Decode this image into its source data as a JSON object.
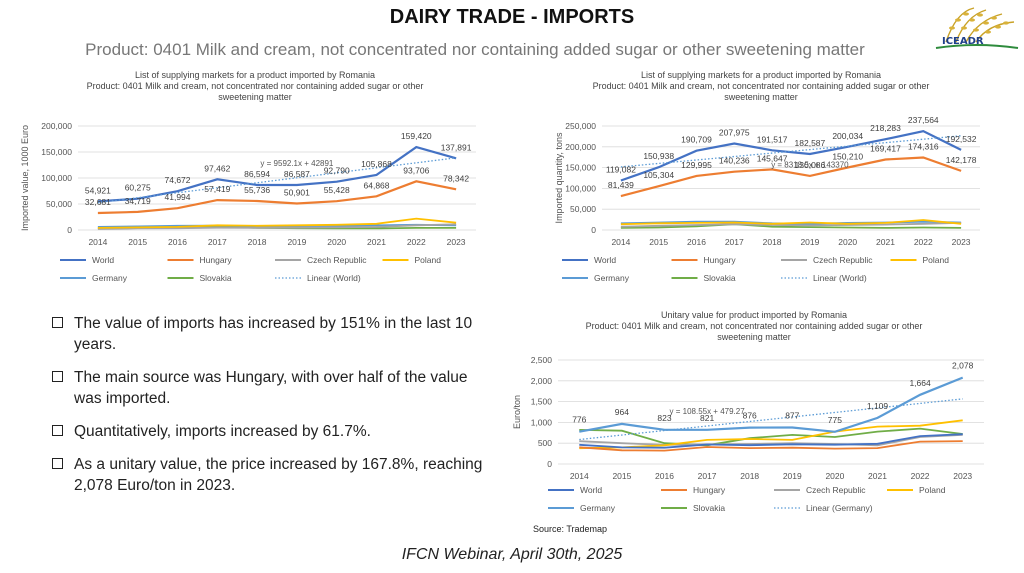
{
  "header": {
    "title": "DAIRY TRADE - IMPORTS",
    "subtitle": "Product: 0401 Milk and cream, not concentrated nor containing added sugar or other sweetening matter",
    "logo_text": "ICEADR"
  },
  "colors": {
    "World": "#4472c4",
    "Hungary": "#ed7d31",
    "Czech Republic": "#a5a5a5",
    "Poland": "#ffc000",
    "Germany": "#5b9bd5",
    "Slovakia": "#70ad47"
  },
  "chart_data": [
    {
      "type": "line",
      "title": "List of supplying markets for a product imported by Romania\nProduct: 0401 Milk and cream, not concentrated nor containing added sugar or other sweetening matter",
      "ylabel": "Imported value, 1000 Euro",
      "xlabel": "",
      "ylim": [
        0,
        200000
      ],
      "yticks": [
        0,
        50000,
        100000,
        150000,
        200000
      ],
      "ytick_labels": [
        "0",
        "50,000",
        "100,000",
        "150,000",
        "200,000"
      ],
      "x": [
        "2014",
        "2015",
        "2016",
        "2017",
        "2018",
        "2019",
        "2020",
        "2021",
        "2022",
        "2023"
      ],
      "series": [
        {
          "name": "World",
          "values": [
            54921,
            60275,
            74672,
            97462,
            86594,
            86587,
            92790,
            105868,
            159420,
            137891
          ],
          "labels": [
            "54,921",
            "60,275",
            "74,672",
            "97,462",
            "86,594",
            "86,587",
            "92,790",
            "105,868",
            "159,420",
            "137,891"
          ]
        },
        {
          "name": "Hungary",
          "values": [
            32681,
            34719,
            41994,
            57419,
            55736,
            50901,
            55428,
            64868,
            93706,
            78342
          ],
          "labels": [
            "32,681",
            "34,719",
            "41,994",
            "57,419",
            "55,736",
            "50,901",
            "55,428",
            "64,868",
            "93,706",
            "78,342"
          ]
        },
        {
          "name": "Czech Republic",
          "values": [
            2000,
            3000,
            3500,
            4500,
            4000,
            4500,
            5000,
            6000,
            9000,
            11000
          ]
        },
        {
          "name": "Poland",
          "values": [
            4000,
            5000,
            6000,
            9000,
            8000,
            9000,
            10000,
            12000,
            22000,
            14000
          ]
        },
        {
          "name": "Germany",
          "values": [
            6000,
            7000,
            8000,
            8500,
            7000,
            7500,
            8000,
            9000,
            10000,
            9000
          ]
        },
        {
          "name": "Slovakia",
          "values": [
            3000,
            4000,
            5000,
            7000,
            4000,
            3500,
            3000,
            3000,
            4000,
            4000
          ]
        }
      ],
      "trendline": {
        "name": "Linear (World)",
        "slope": 9592.1,
        "intercept": 42891,
        "equation": "y = 9592.1x + 42891"
      },
      "legend": [
        "World",
        "Hungary",
        "Czech Republic",
        "Poland",
        "Germany",
        "Slovakia",
        "Linear (World)"
      ],
      "legend_position": "bottom",
      "grid": true
    },
    {
      "type": "line",
      "title": "List of supplying markets for a product imported by Romania\nProduct: 0401 Milk and cream, not concentrated nor containing added sugar or other sweetening matter",
      "ylabel": "Imported quantity, tons",
      "xlabel": "",
      "ylim": [
        0,
        250000
      ],
      "yticks": [
        0,
        50000,
        100000,
        150000,
        200000,
        250000
      ],
      "ytick_labels": [
        "0",
        "50,000",
        "100,000",
        "150,000",
        "200,000",
        "250,000"
      ],
      "x": [
        "2014",
        "2015",
        "2016",
        "2017",
        "2018",
        "2019",
        "2020",
        "2021",
        "2022",
        "2023"
      ],
      "series": [
        {
          "name": "World",
          "values": [
            119082,
            150938,
            190709,
            207975,
            191517,
            182587,
            200034,
            218283,
            237564,
            192532
          ],
          "labels": [
            "119,082",
            "150,938",
            "190,709",
            "207,975",
            "191,517",
            "182,587",
            "200,034",
            "218,283",
            "237,564",
            "192,532"
          ]
        },
        {
          "name": "Hungary",
          "values": [
            81439,
            105304,
            129995,
            140236,
            145647,
            130086,
            150210,
            169417,
            174316,
            142178
          ],
          "labels": [
            "81,439",
            "105,304",
            "129,995",
            "140,236",
            "145,647",
            "130,086",
            "150,210",
            "169,417",
            "174,316",
            "142,178"
          ]
        },
        {
          "name": "Czech Republic",
          "values": [
            8000,
            10000,
            12000,
            14000,
            12000,
            11000,
            12000,
            13000,
            15000,
            17000
          ]
        },
        {
          "name": "Poland",
          "values": [
            14000,
            16000,
            17000,
            18000,
            15000,
            18000,
            15000,
            17000,
            24000,
            15000
          ]
        },
        {
          "name": "Germany",
          "values": [
            16000,
            18000,
            20000,
            20000,
            16000,
            15000,
            17000,
            18000,
            20000,
            18000
          ]
        },
        {
          "name": "Slovakia",
          "values": [
            5000,
            6000,
            9000,
            14000,
            8000,
            7000,
            6000,
            5000,
            6000,
            5000
          ]
        }
      ],
      "trendline": {
        "name": "Linear (World)",
        "slope": 8318.5,
        "intercept": 143370,
        "equation": "y = 8318.5x + 143370"
      },
      "legend": [
        "World",
        "Hungary",
        "Czech Republic",
        "Poland",
        "Germany",
        "Slovakia",
        "Linear (World)"
      ],
      "legend_position": "bottom",
      "grid": true
    },
    {
      "type": "line",
      "title": "Unitary value for product imported by Romania\nProduct: 0401 Milk and cream, not concentrated nor containing added sugar or other sweetening matter",
      "ylabel": "Euro/ton",
      "xlabel": "",
      "ylim": [
        0,
        2500
      ],
      "yticks": [
        0,
        500,
        1000,
        1500,
        2000,
        2500
      ],
      "ytick_labels": [
        "0",
        "500",
        "1,000",
        "1,500",
        "2,000",
        "2,500"
      ],
      "x": [
        "2014",
        "2015",
        "2016",
        "2017",
        "2018",
        "2019",
        "2020",
        "2021",
        "2022",
        "2023"
      ],
      "series": [
        {
          "name": "World",
          "values": [
            461,
            399,
            392,
            469,
            452,
            474,
            464,
            485,
            671,
            716
          ]
        },
        {
          "name": "Hungary",
          "values": [
            401,
            330,
            323,
            409,
            383,
            391,
            369,
            383,
            538,
            551
          ]
        },
        {
          "name": "Czech Republic",
          "values": [
            550,
            500,
            460,
            470,
            480,
            500,
            480,
            450,
            650,
            700
          ]
        },
        {
          "name": "Poland",
          "values": [
            380,
            400,
            450,
            580,
            600,
            580,
            780,
            900,
            920,
            1050
          ]
        },
        {
          "name": "Germany",
          "values": [
            776,
            964,
            823,
            821,
            876,
            877,
            775,
            1109,
            1664,
            2078
          ],
          "labels": [
            "776",
            "964",
            "823",
            "821",
            "876",
            "877",
            "775",
            "1,109",
            "1,664",
            "2,078"
          ]
        },
        {
          "name": "Slovakia",
          "values": [
            820,
            800,
            500,
            450,
            620,
            700,
            650,
            780,
            850,
            720
          ]
        }
      ],
      "trendline": {
        "name": "Linear (Germany)",
        "slope": 108.55,
        "intercept": 479.27,
        "equation": "y = 108.55x + 479.27"
      },
      "legend": [
        "World",
        "Hungary",
        "Czech Republic",
        "Poland",
        "Germany",
        "Slovakia",
        "Linear (Germany)"
      ],
      "legend_position": "bottom",
      "grid": true
    }
  ],
  "chart_titles": [
    [
      "List of supplying markets for a product imported by Romania",
      "Product: 0401 Milk and cream, not concentrated nor containing added sugar or other",
      "sweetening matter"
    ],
    [
      "List of supplying markets for a product imported by Romania",
      "Product: 0401 Milk and cream, not concentrated nor containing added sugar or other",
      "sweetening matter"
    ],
    [
      "Unitary value for product imported by Romania",
      "Product: 0401 Milk and cream, not concentrated nor containing added sugar or other",
      "sweetening matter"
    ]
  ],
  "bullets": [
    "The value of imports has increased by 151% in the last 10 years.",
    "The main source was Hungary, with over half of the value was imported.",
    "Quantitatively, imports increased by 61.7%.",
    "As a unitary value, the price increased by 167.8%, reaching 2,078 Euro/ton in 2023."
  ],
  "source": "Source: Trademap",
  "footer": "IFCN Webinar, April 30th, 2025"
}
